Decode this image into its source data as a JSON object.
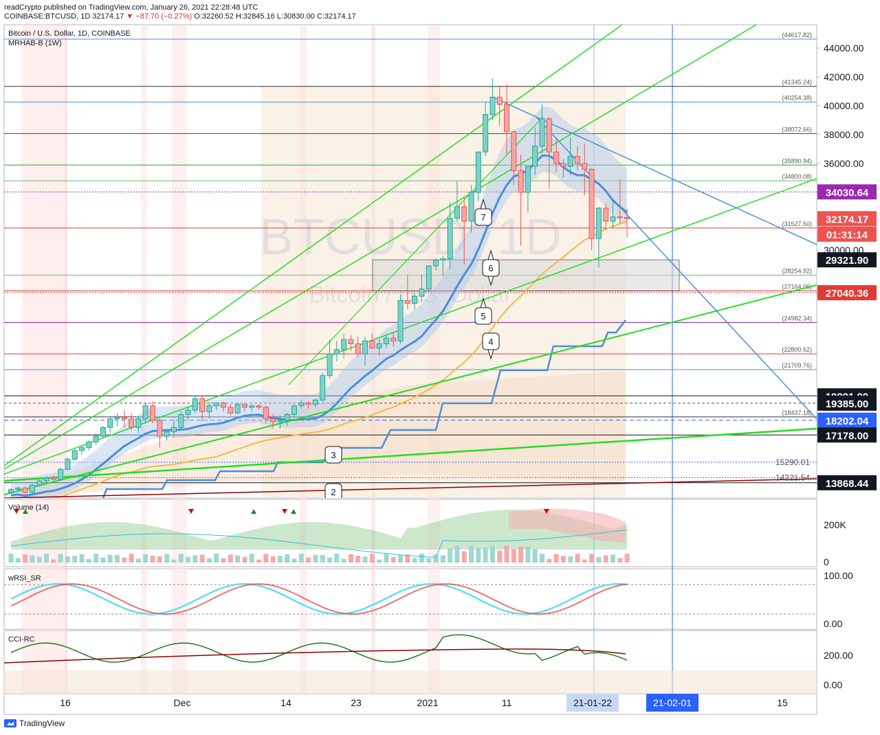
{
  "header": {
    "line1": "readCrypto published on TradingView.com, January 26, 2021 22:28:48 UTC",
    "symbol": "COINBASE:BTCUSD, 1D",
    "last": "32174.17",
    "change": "▼ −87.70 (−0.27%)",
    "ohlc": "O:32260.52 H:32845.16 L:30830.00 C:32174.17"
  },
  "chart_title": "Bitcoin / U.S. Dollar, 1D, COINBASE",
  "indicator": "MRHAB-B (1W)",
  "watermark": {
    "symbol": "BTCUSD, 1D",
    "name": "Bitcoin / U.S. Dollar"
  },
  "panes": {
    "volume": "Volume (14)",
    "rsi": "wRSI_SR",
    "cci": "CCI-RC"
  },
  "footer": {
    "brand": "TradingView"
  },
  "colors": {
    "up": "#26a69a",
    "down": "#ef5350",
    "blue": "#4a90d9",
    "green": "#22dd22",
    "orange": "#f5b942",
    "purple": "#7b1fa2",
    "red": "#e53935",
    "black": "#131722"
  },
  "chart_data": {
    "type": "candlestick",
    "symbol": "COINBASE:BTCUSD",
    "timeframe": "1D",
    "x_ticks": [
      "16",
      "Dec",
      "14",
      "23",
      "2021",
      "11",
      "21-01-22",
      "21-02-01",
      "15"
    ],
    "y_ticks": [
      30000,
      32000,
      34000,
      36000,
      38000,
      40000,
      42000,
      44000
    ],
    "ylim": [
      12500,
      45500
    ],
    "price_levels": [
      {
        "value": 44617.82,
        "label": "(44617.82)",
        "color": "#4a90d9"
      },
      {
        "value": 41345.24,
        "label": "(41345.24)",
        "color": "#333333"
      },
      {
        "value": 40254.38,
        "label": "(40254.38)",
        "color": "#4a90d9"
      },
      {
        "value": 38072.66,
        "label": "(38072.66)",
        "color": "#0b6e4f"
      },
      {
        "value": 35890.94,
        "label": "(35890.94)",
        "color": "#22aa22"
      },
      {
        "value": 34800.08,
        "label": "(34800.08)",
        "color": "#66bb6a"
      },
      {
        "value": 31527.5,
        "label": "(31527.50)",
        "color": "#e53935"
      },
      {
        "value": 28254.92,
        "label": "(28254.92)",
        "color": "#66bb6a"
      },
      {
        "value": 27164.06,
        "label": "(27164.06)",
        "color": "#e53935"
      },
      {
        "value": 24982.34,
        "label": "(24982.34)",
        "color": "#7b1fa2"
      },
      {
        "value": 22800.62,
        "label": "(22800.62)",
        "color": "#e53935"
      },
      {
        "value": 21709.76,
        "label": "(21709.76)",
        "color": "#4a90d9"
      },
      {
        "value": 18437.18,
        "label": "(18437.18)",
        "color": "#333333"
      }
    ],
    "price_tags": [
      {
        "value": 34030.64,
        "label": "34030.64",
        "bg": "#9c27b0"
      },
      {
        "value": 32174.17,
        "label": "32174.17",
        "bg": "#ef5350"
      },
      {
        "value": 31100,
        "label": "01:31:14",
        "bg": "#ef5350"
      },
      {
        "value": 29321.9,
        "label": "29321.90",
        "bg": "#131722"
      },
      {
        "value": 27040.36,
        "label": "27040.36",
        "bg": "#e53935"
      },
      {
        "value": 19891.99,
        "label": "19891.99",
        "bg": "#131722"
      },
      {
        "value": 19385.0,
        "label": "19385.00",
        "bg": "#131722"
      },
      {
        "value": 18202.04,
        "label": "18202.04",
        "bg": "#2962ff"
      },
      {
        "value": 17178.0,
        "label": "17178.00",
        "bg": "#131722"
      },
      {
        "value": 13868.44,
        "label": "13868.44",
        "bg": "#131722"
      }
    ],
    "overlap_labels": [
      "15290.01",
      "14221.54"
    ],
    "wave_labels": [
      "7",
      "6",
      "5",
      "4",
      "3",
      "2"
    ],
    "candles": [
      [
        13200,
        13500,
        13100,
        13400
      ],
      [
        13400,
        13600,
        13300,
        13500
      ],
      [
        13500,
        13600,
        13000,
        13200
      ],
      [
        13200,
        13800,
        13100,
        13700
      ],
      [
        13700,
        14100,
        13600,
        14000
      ],
      [
        14000,
        14300,
        13900,
        14200
      ],
      [
        14200,
        14400,
        14000,
        14100
      ],
      [
        14100,
        14900,
        14000,
        14800
      ],
      [
        14800,
        15600,
        14700,
        15500
      ],
      [
        15500,
        16200,
        15400,
        16100
      ],
      [
        16100,
        16500,
        15800,
        16300
      ],
      [
        16300,
        16800,
        16100,
        16700
      ],
      [
        16700,
        17300,
        16500,
        17100
      ],
      [
        17100,
        17800,
        17000,
        17700
      ],
      [
        17700,
        18400,
        17300,
        18300
      ],
      [
        18300,
        18700,
        17800,
        18400
      ],
      [
        18400,
        18900,
        17700,
        18300
      ],
      [
        18300,
        18700,
        17500,
        17700
      ],
      [
        17700,
        18500,
        17300,
        18300
      ],
      [
        18300,
        19400,
        18000,
        19200
      ],
      [
        19200,
        19500,
        18000,
        18200
      ],
      [
        18200,
        18300,
        16300,
        17100
      ],
      [
        17100,
        17600,
        16800,
        17400
      ],
      [
        17400,
        18200,
        17000,
        17700
      ],
      [
        17700,
        18800,
        17600,
        18600
      ],
      [
        18600,
        19100,
        18200,
        18900
      ],
      [
        18900,
        19900,
        18700,
        19700
      ],
      [
        19700,
        19900,
        18100,
        18800
      ],
      [
        18800,
        19400,
        18300,
        19200
      ],
      [
        19200,
        19400,
        18900,
        19400
      ],
      [
        19400,
        19500,
        18800,
        19100
      ],
      [
        19100,
        19300,
        18500,
        18700
      ],
      [
        18700,
        19400,
        18600,
        19300
      ],
      [
        19300,
        19400,
        18800,
        19100
      ],
      [
        19100,
        19300,
        18800,
        19200
      ],
      [
        19200,
        19300,
        18900,
        19100
      ],
      [
        19100,
        19200,
        18000,
        18300
      ],
      [
        18300,
        18600,
        17600,
        18100
      ],
      [
        18100,
        18500,
        17600,
        18200
      ],
      [
        18200,
        18700,
        17800,
        18600
      ],
      [
        18600,
        19300,
        18400,
        19200
      ],
      [
        19200,
        19600,
        19000,
        19400
      ],
      [
        19400,
        19500,
        19000,
        19300
      ],
      [
        19300,
        19700,
        19100,
        19600
      ],
      [
        19600,
        21500,
        19500,
        21300
      ],
      [
        21300,
        23800,
        21100,
        22800
      ],
      [
        22800,
        23700,
        22300,
        23100
      ],
      [
        23100,
        24200,
        22500,
        23800
      ],
      [
        23800,
        24100,
        23000,
        23500
      ],
      [
        23500,
        24000,
        22600,
        22800
      ],
      [
        22800,
        24000,
        22000,
        23700
      ],
      [
        23700,
        24200,
        23300,
        23200
      ],
      [
        23200,
        23800,
        22700,
        23500
      ],
      [
        23500,
        24100,
        23200,
        23900
      ],
      [
        23900,
        24300,
        23300,
        23700
      ],
      [
        23700,
        26900,
        23500,
        26500
      ],
      [
        26500,
        28300,
        25900,
        26300
      ],
      [
        26300,
        27000,
        25900,
        26800
      ],
      [
        26800,
        28300,
        26400,
        27300
      ],
      [
        27300,
        28600,
        27100,
        28900
      ],
      [
        28900,
        29400,
        28600,
        29300
      ],
      [
        29300,
        29600,
        28200,
        29400
      ],
      [
        29400,
        33300,
        28700,
        32200
      ],
      [
        32200,
        34800,
        32000,
        33000
      ],
      [
        33000,
        33600,
        29000,
        32000
      ],
      [
        32000,
        34500,
        31200,
        34000
      ],
      [
        34000,
        36600,
        33400,
        36800
      ],
      [
        36800,
        40300,
        36500,
        39400
      ],
      [
        39400,
        41900,
        39000,
        40600
      ],
      [
        40600,
        41400,
        38600,
        40100
      ],
      [
        40100,
        41500,
        36600,
        38200
      ],
      [
        38200,
        38300,
        34500,
        35500
      ],
      [
        35500,
        36600,
        30300,
        34000
      ],
      [
        34000,
        35800,
        32600,
        35800
      ],
      [
        35800,
        38500,
        35200,
        37200
      ],
      [
        37200,
        40100,
        36700,
        39100
      ],
      [
        39100,
        39200,
        34300,
        36800
      ],
      [
        36800,
        37700,
        35400,
        36000
      ],
      [
        36000,
        36300,
        35000,
        35800
      ],
      [
        35800,
        37800,
        35200,
        36500
      ],
      [
        36500,
        37200,
        35500,
        36000
      ],
      [
        36000,
        37400,
        33800,
        35600
      ],
      [
        35600,
        35700,
        30000,
        30800
      ],
      [
        30800,
        33000,
        28800,
        32900
      ],
      [
        32900,
        33200,
        31400,
        32000
      ],
      [
        32000,
        33500,
        31500,
        32300
      ],
      [
        32300,
        34900,
        31800,
        32260
      ],
      [
        32260,
        32845,
        30830,
        32174
      ]
    ]
  }
}
